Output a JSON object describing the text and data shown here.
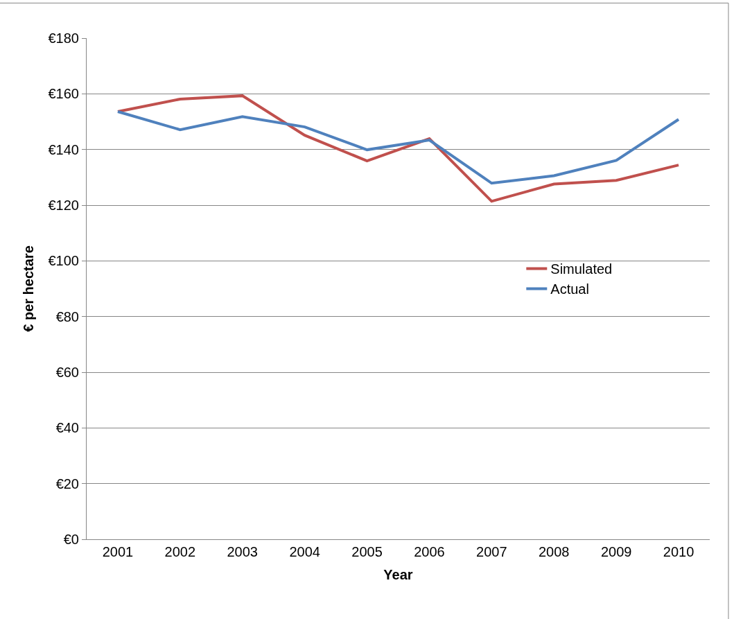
{
  "chart_data": {
    "type": "line",
    "xlabel": "Year",
    "ylabel": "€ per hectare",
    "categories": [
      "2001",
      "2002",
      "2003",
      "2004",
      "2005",
      "2006",
      "2007",
      "2008",
      "2009",
      "2010"
    ],
    "series": [
      {
        "name": "Simulated",
        "color": "#c0504d",
        "values": [
          153.6,
          158.1,
          159.3,
          145.1,
          135.9,
          143.9,
          121.4,
          127.6,
          128.9,
          134.4
        ]
      },
      {
        "name": "Actual",
        "color": "#4f81bd",
        "values": [
          153.6,
          147.1,
          151.8,
          148.1,
          139.9,
          143.4,
          127.9,
          130.6,
          136.1,
          150.8
        ]
      }
    ],
    "ylim": [
      0,
      180
    ],
    "yticks": [
      {
        "value": 0,
        "label": "€0"
      },
      {
        "value": 20,
        "label": "€20"
      },
      {
        "value": 40,
        "label": "€40"
      },
      {
        "value": 60,
        "label": "€60"
      },
      {
        "value": 80,
        "label": "€80"
      },
      {
        "value": 100,
        "label": "€100"
      },
      {
        "value": 120,
        "label": "€120"
      },
      {
        "value": 140,
        "label": "€140"
      },
      {
        "value": 160,
        "label": "€160"
      },
      {
        "value": 180,
        "label": "€180"
      }
    ],
    "grid": "y",
    "legend": "right",
    "marker": "none",
    "line_style": "solid"
  }
}
